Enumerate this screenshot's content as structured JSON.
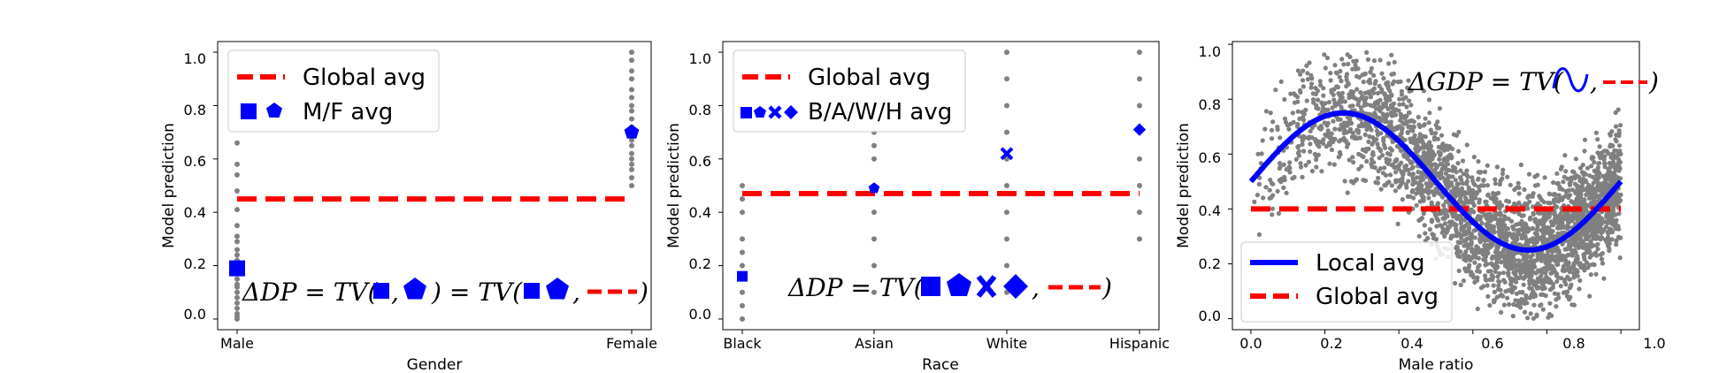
{
  "colors": {
    "points": "#808080",
    "global": "#ff0000",
    "marker": "#0000ff",
    "local": "#0000ff"
  },
  "chart_data": [
    {
      "type": "scatter",
      "xlabel": "Gender",
      "ylabel": "Model prediction",
      "categories": [
        "Male",
        "Female"
      ],
      "yticks": [
        "0.0",
        "0.2",
        "0.4",
        "0.6",
        "0.8",
        "1.0"
      ],
      "ylim": [
        -0.04,
        1.04
      ],
      "global_avg": 0.45,
      "group_avgs": [
        0.19,
        0.7
      ],
      "group_markers": [
        "square",
        "pentagon"
      ],
      "points": [
        [
          0.0,
          0.01,
          0.02,
          0.04,
          0.06,
          0.08,
          0.1,
          0.12,
          0.13,
          0.15,
          0.17,
          0.2,
          0.22,
          0.24,
          0.26,
          0.29,
          0.31,
          0.35,
          0.41,
          0.48,
          0.54,
          0.58,
          0.66
        ],
        [
          0.5,
          0.53,
          0.56,
          0.58,
          0.6,
          0.62,
          0.65,
          0.67,
          0.7,
          0.72,
          0.75,
          0.78,
          0.8,
          0.83,
          0.86,
          0.9,
          0.93,
          0.97,
          1.0
        ]
      ],
      "legend": [
        "Global avg",
        "M/F avg"
      ],
      "legend_loc": "upper-left",
      "annotation": {
        "prefix": "ΔDP = TV(",
        "mid": ") = TV(",
        "suffix": ")"
      }
    },
    {
      "type": "scatter",
      "xlabel": "Race",
      "ylabel": "Model prediction",
      "categories": [
        "Black",
        "Asian",
        "White",
        "Hispanic"
      ],
      "yticks": [
        "0.0",
        "0.2",
        "0.4",
        "0.6",
        "0.8",
        "1.0"
      ],
      "ylim": [
        -0.04,
        1.04
      ],
      "global_avg": 0.47,
      "group_avgs": [
        0.16,
        0.49,
        0.62,
        0.71
      ],
      "group_markers": [
        "square",
        "pentagon",
        "x",
        "diamond"
      ],
      "points": [
        [
          0.0,
          0.05,
          0.1,
          0.15,
          0.2,
          0.25,
          0.3,
          0.4,
          0.45,
          0.5
        ],
        [
          0.1,
          0.2,
          0.3,
          0.4,
          0.5,
          0.6,
          0.65,
          0.7
        ],
        [
          0.1,
          0.2,
          0.3,
          0.4,
          0.5,
          0.6,
          0.7,
          0.8,
          0.9,
          1.0
        ],
        [
          0.3,
          0.4,
          0.5,
          0.6,
          0.7,
          0.8,
          0.9,
          1.0
        ]
      ],
      "legend": [
        "Global avg",
        "B/A/W/H avg"
      ],
      "legend_loc": "upper-left",
      "annotation": {
        "prefix": "ΔDP = TV(",
        "suffix": ")"
      }
    },
    {
      "type": "scatter",
      "xlabel": "Male ratio",
      "ylabel": "Model prediction",
      "xticks": [
        "0.0",
        "0.2",
        "0.4",
        "0.6",
        "0.8",
        "1.0"
      ],
      "yticks": [
        "0.0",
        "0.2",
        "0.4",
        "0.6",
        "0.8",
        "1.0"
      ],
      "xlim": [
        -0.05,
        1.05
      ],
      "ylim": [
        -0.04,
        1.01
      ],
      "global_avg": 0.4,
      "local_avg": {
        "formula": "0.5 + 0.25*sin(2*pi*x)",
        "x_range": [
          0,
          1
        ]
      },
      "scatter_density": "increasing toward x = 1",
      "legend": [
        "Local avg",
        "Global avg"
      ],
      "legend_loc": "lower-left",
      "annotation": {
        "prefix": "ΔGDP = TV(",
        "suffix": ")"
      }
    }
  ]
}
